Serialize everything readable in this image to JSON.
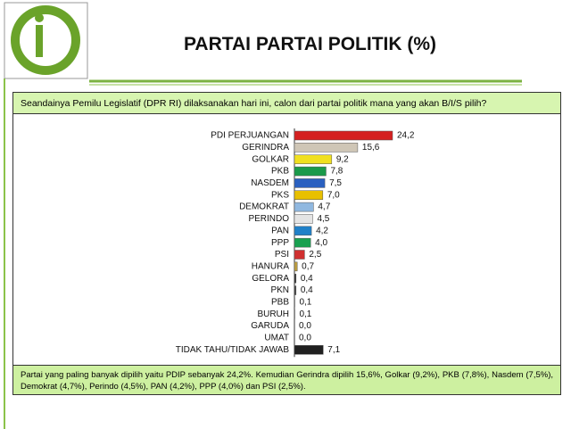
{
  "chart_data": {
    "type": "bar",
    "orientation": "horizontal",
    "title": "PARTAI PARTAI POLITIK (%)",
    "subtitle": "Seandainya Pemilu Legislatif (DPR RI) dilaksanakan hari ini, calon dari partai politik mana yang akan B/I/S pilih?",
    "categories": [
      "PDI PERJUANGAN",
      "GERINDRA",
      "GOLKAR",
      "PKB",
      "NASDEM",
      "PKS",
      "DEMOKRAT",
      "PERINDO",
      "PAN",
      "PPP",
      "PSI",
      "HANURA",
      "GELORA",
      "PKN",
      "PBB",
      "BURUH",
      "GARUDA",
      "UMAT",
      "TIDAK TAHU/TIDAK JAWAB"
    ],
    "values": [
      24.2,
      15.6,
      9.2,
      7.8,
      7.5,
      7.0,
      4.7,
      4.5,
      4.2,
      4.0,
      2.5,
      0.7,
      0.4,
      0.4,
      0.1,
      0.1,
      0.0,
      0.0,
      7.1
    ],
    "value_labels": [
      "24,2",
      "15,6",
      "9,2",
      "7,8",
      "7,5",
      "7,0",
      "4,7",
      "4,5",
      "4,2",
      "4,0",
      "2,5",
      "0,7",
      "0,4",
      "0,4",
      "0,1",
      "0,1",
      "0,0",
      "0,0",
      "7,1"
    ],
    "colors": [
      "#d42020",
      "#cfc6b6",
      "#f0e020",
      "#1a9a4a",
      "#2a60c0",
      "#e8c000",
      "#90b8e0",
      "#e4e4e4",
      "#2080c8",
      "#18a050",
      "#d03030",
      "#c0a040",
      "#303030",
      "#404040",
      "#202020",
      "#202020",
      "#202020",
      "#202020",
      "#202020"
    ],
    "annotation": "Partai yang paling banyak dipilih yaitu PDIP sebanyak 24,2%. Kemudian Gerindra dipilih 15,6%, Golkar (9,2%), PKB (7,8%), Nasdem (7,5%), Demokrat (4,7%), Perindo (4,5%), PAN (4,2%), PPP (4,0%) dan PSI (2,5%)."
  }
}
